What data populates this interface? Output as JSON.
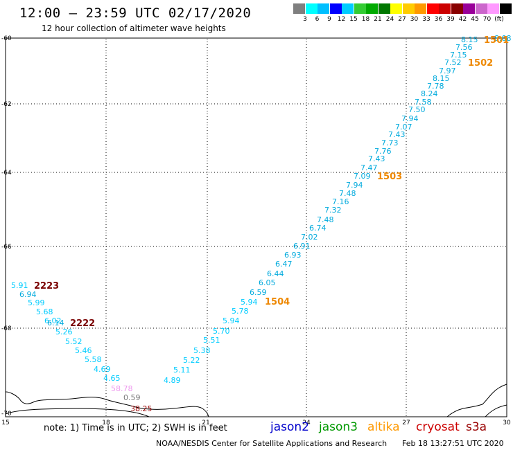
{
  "title": "12:00 – 23:59 UTC 02/17/2020",
  "subtitle": "12 hour collection of altimeter wave heights",
  "scale": {
    "colors": [
      "#7f7f7f",
      "#00ffff",
      "#00bfff",
      "#0000ff",
      "#00ccff",
      "#33cc33",
      "#00aa00",
      "#007700",
      "#ffff00",
      "#ffcc00",
      "#ff9900",
      "#ff0000",
      "#cc0000",
      "#880000",
      "#990099",
      "#cc66cc",
      "#ff99ff",
      "#000000"
    ],
    "labels": [
      "3",
      "6",
      "9",
      "12",
      "15",
      "18",
      "21",
      "24",
      "27",
      "30",
      "33",
      "36",
      "39",
      "42",
      "45",
      "70",
      "(ft)"
    ]
  },
  "axes": {
    "x_labels": [
      "15",
      "18",
      "21",
      "24",
      "27",
      "30"
    ],
    "y_labels": [
      "-60",
      "-62",
      "-64",
      "-66",
      "-68",
      "-70"
    ]
  },
  "observations": [
    {
      "t": "5.91",
      "c": "#00ccff"
    },
    {
      "t": "6.94",
      "c": "#00aadd"
    },
    {
      "t": "5.99",
      "c": "#00ccff"
    },
    {
      "t": "5.68",
      "c": "#00ccff"
    },
    {
      "t": "6.02",
      "c": "#00ccff"
    },
    {
      "t": "6.14",
      "c": "#00aadd"
    },
    {
      "t": "5.26",
      "c": "#00ccff"
    },
    {
      "t": "5.52",
      "c": "#00ccff"
    },
    {
      "t": "5.46",
      "c": "#00ccff"
    },
    {
      "t": "5.58",
      "c": "#00ccff"
    },
    {
      "t": "4.69",
      "c": "#00ccff"
    },
    {
      "t": "4.65",
      "c": "#00ccff"
    },
    {
      "t": "58.78",
      "c": "#ee99ee"
    },
    {
      "t": "0.59",
      "c": "#777777"
    },
    {
      "t": "38.25",
      "c": "#990000"
    },
    {
      "t": "4.89",
      "c": "#00ccff"
    },
    {
      "t": "5.11",
      "c": "#00ccff"
    },
    {
      "t": "5.22",
      "c": "#00ccff"
    },
    {
      "t": "5.38",
      "c": "#00ccff"
    },
    {
      "t": "5.51",
      "c": "#00ccff"
    },
    {
      "t": "5.70",
      "c": "#00ccff"
    },
    {
      "t": "5.94",
      "c": "#00ccff"
    },
    {
      "t": "5.78",
      "c": "#00ccff"
    },
    {
      "t": "5.94",
      "c": "#00ccff"
    },
    {
      "t": "6.59",
      "c": "#00aadd"
    },
    {
      "t": "6.05",
      "c": "#00aadd"
    },
    {
      "t": "6.44",
      "c": "#00aadd"
    },
    {
      "t": "6.47",
      "c": "#00aadd"
    },
    {
      "t": "6.93",
      "c": "#00aadd"
    },
    {
      "t": "6.91",
      "c": "#00aadd"
    },
    {
      "t": "7.02",
      "c": "#00aadd"
    },
    {
      "t": "6.74",
      "c": "#00aadd"
    },
    {
      "t": "7.48",
      "c": "#00aadd"
    },
    {
      "t": "7.32",
      "c": "#00aadd"
    },
    {
      "t": "7.16",
      "c": "#00aadd"
    },
    {
      "t": "7.48",
      "c": "#00aadd"
    },
    {
      "t": "7.94",
      "c": "#00aadd"
    },
    {
      "t": "7.09",
      "c": "#00aadd"
    },
    {
      "t": "7.47",
      "c": "#00aadd"
    },
    {
      "t": "7.43",
      "c": "#00aadd"
    },
    {
      "t": "7.76",
      "c": "#00aadd"
    },
    {
      "t": "7.73",
      "c": "#00aadd"
    },
    {
      "t": "7.43",
      "c": "#00aadd"
    },
    {
      "t": "7.07",
      "c": "#00aadd"
    },
    {
      "t": "7.94",
      "c": "#00aadd"
    },
    {
      "t": "7.50",
      "c": "#00aadd"
    },
    {
      "t": "7.58",
      "c": "#00aadd"
    },
    {
      "t": "8.24",
      "c": "#00aadd"
    },
    {
      "t": "7.78",
      "c": "#00aadd"
    },
    {
      "t": "8.15",
      "c": "#00aadd"
    },
    {
      "t": "7.97",
      "c": "#00aadd"
    },
    {
      "t": "7.52",
      "c": "#00aadd"
    },
    {
      "t": "7.15",
      "c": "#00aadd"
    },
    {
      "t": "7.56",
      "c": "#00aadd"
    },
    {
      "t": "8.15",
      "c": "#00aadd"
    },
    {
      "t": "8.08",
      "c": "#00aadd"
    }
  ],
  "time_tags": [
    {
      "t": "2223",
      "c": "#7a0000"
    },
    {
      "t": "2222",
      "c": "#7a0000"
    },
    {
      "t": "1504",
      "c": "#ee8800"
    },
    {
      "t": "1503",
      "c": "#ee8800"
    },
    {
      "t": "1502",
      "c": "#ee8800"
    },
    {
      "t": "1501",
      "c": "#ee8800"
    }
  ],
  "note": "note:  1) Time is in UTC;  2) SWH is in feet",
  "legend": [
    {
      "t": "jason2",
      "c": "#0000cc"
    },
    {
      "t": "jason3",
      "c": "#009900"
    },
    {
      "t": "altika",
      "c": "#ff9900"
    },
    {
      "t": "cryosat",
      "c": "#cc0000"
    },
    {
      "t": "s3a",
      "c": "#990000"
    }
  ],
  "credit": "NOAA/NESDIS Center for Satellite Applications and Research",
  "stamp": "Feb 18 13:27:51 UTC 2020"
}
